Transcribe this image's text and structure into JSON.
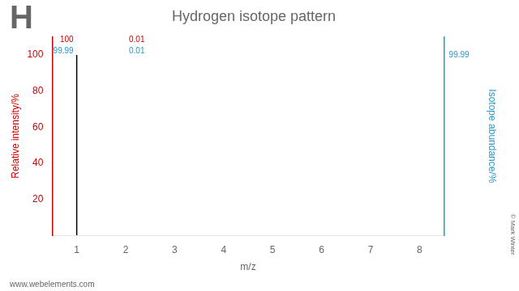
{
  "chart_data": {
    "type": "stem",
    "title": "Hydrogen isotope pattern",
    "element_symbol": "H",
    "footer": "www.webelements.com",
    "copyright": "© Mark Winter",
    "xlabel": "m/z",
    "ylabel": "Relative intensity/%",
    "y2label": "Isotope abundance/%",
    "x": [
      1,
      2
    ],
    "values": [
      100,
      0.01
    ],
    "color": "#000000",
    "xlim": [
      0.5,
      8.5
    ],
    "xticks": [
      1,
      2,
      3,
      4,
      5,
      6,
      7,
      8
    ],
    "ylim": [
      0,
      110
    ],
    "yticks": [
      {
        "value": 0,
        "label": null
      },
      20,
      40,
      60,
      80,
      100
    ],
    "y2lim": [
      0,
      110
    ],
    "y2ticks": [
      {
        "value": 0,
        "label": null
      },
      {
        "value": 20,
        "label": null
      },
      {
        "value": 40,
        "label": null
      },
      {
        "value": 60,
        "label": null
      },
      {
        "value": 80,
        "label": null
      },
      {
        "value": 100,
        "label": null
      }
    ],
    "grid": false,
    "axis_colors": {
      "y": "#cc0000",
      "y2": "#2299cc"
    },
    "annotations": [
      {
        "text": "100",
        "x": 1,
        "y": 106,
        "side": "left",
        "color": "#cc0000"
      },
      {
        "text": "99.99",
        "x": 1,
        "y": 100,
        "side": "left",
        "color": "#2299cc"
      },
      {
        "text": "0.01",
        "x": 2,
        "y": 106,
        "side": "right",
        "color": "#cc0000"
      },
      {
        "text": "0.01",
        "x": 2,
        "y": 100,
        "side": "right",
        "color": "#2299cc"
      },
      {
        "text": "99.99",
        "y": 100,
        "axis": "y2",
        "color": "#2299cc"
      }
    ]
  }
}
